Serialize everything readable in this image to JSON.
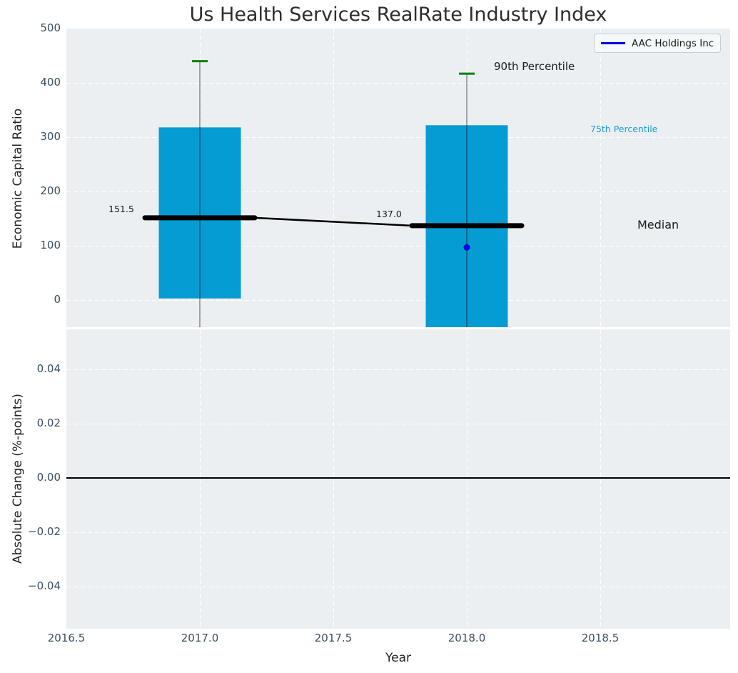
{
  "title": "Us Health Services RealRate Industry Index",
  "legend": {
    "label": "AAC Holdings Inc",
    "line_color": "#0000e0"
  },
  "colors": {
    "axes_background": "#eceff1",
    "grid": "#ffffff",
    "box_fill": "#059cd3",
    "percentile90_cap": "#008000",
    "median_line": "#000000",
    "company_marker": "#0000e0",
    "tick_label": "#3a4d63",
    "percentile75_text": "#1a9cd8"
  },
  "chart_data": [
    {
      "type": "boxplot",
      "title": "Us Health Services RealRate Industry Index",
      "ylabel": "Economic Capital Ratio",
      "ylim": [
        -52,
        500
      ],
      "yticks": [
        0,
        100,
        200,
        300,
        400,
        500
      ],
      "ytick_labels": [
        "0",
        "100",
        "200",
        "300",
        "400",
        "500"
      ],
      "xlim": [
        2016.5,
        2019.0
      ],
      "grid_x": [
        2017.0,
        2017.5,
        2018.0,
        2018.5
      ],
      "grid": "white dashed on light gray",
      "boxes": [
        {
          "year": 2017,
          "p90": 440,
          "p75": 318,
          "median": 151.5,
          "p25": 3,
          "p10": null,
          "whisker_low_clipped_below_axis": true,
          "median_label": "151.5"
        },
        {
          "year": 2018,
          "p90": 417,
          "p75": 322,
          "median": 137.0,
          "p25": null,
          "p10": null,
          "box_bottom_clipped_below_axis": true,
          "whisker_low_clipped_below_axis": true,
          "median_label": "137.0"
        }
      ],
      "median_trend": [
        [
          2017,
          151.5
        ],
        [
          2018,
          137.0
        ]
      ],
      "company_series": {
        "name": "AAC Holdings Inc",
        "points": [
          [
            2018,
            97
          ]
        ]
      },
      "annotations": [
        {
          "text": "90th Percentile",
          "color": "#1a1a1a"
        },
        {
          "text": "75th Percentile",
          "color": "#1a9cd8"
        },
        {
          "text": "Median",
          "color": "#1a1a1a"
        }
      ],
      "legend": {
        "label": "AAC Holdings Inc",
        "position": "upper right"
      }
    },
    {
      "type": "line",
      "ylabel": "Absolute Change (%-points)",
      "xlabel": "Year",
      "ylim": [
        -0.055,
        0.055
      ],
      "yticks": [
        -0.04,
        -0.02,
        0,
        0.02,
        0.04
      ],
      "ytick_labels": [
        "−0.04",
        "−0.02",
        "0.00",
        "0.02",
        "0.04"
      ],
      "xticks": [
        2016.5,
        2017,
        2017.5,
        2018,
        2018.5
      ],
      "xtick_labels": [
        "2016.5",
        "2017.0",
        "2017.5",
        "2018.0",
        "2018.5"
      ],
      "zero_line": 0.0,
      "series": []
    }
  ]
}
